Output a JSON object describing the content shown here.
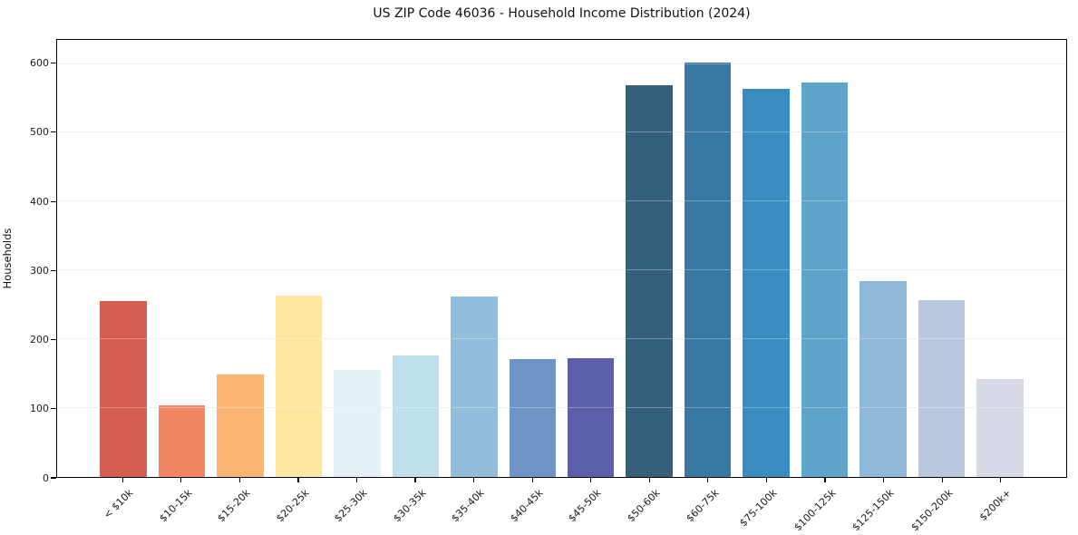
{
  "chart_data": {
    "type": "bar",
    "title": "US ZIP Code 46036 - Household Income Distribution (2024)",
    "xlabel": "",
    "ylabel": "Households",
    "categories": [
      "< $10k",
      "$10-15k",
      "$15-20k",
      "$20-25k",
      "$25-30k",
      "$30-35k",
      "$35-40k",
      "$40-45k",
      "$45-50k",
      "$50-60k",
      "$60-75k",
      "$75-100k",
      "$100-125k",
      "$125-150k",
      "$150-200k",
      "$200k+"
    ],
    "values": [
      256,
      104,
      149,
      264,
      156,
      176,
      262,
      171,
      172,
      569,
      602,
      564,
      573,
      285,
      257,
      142
    ],
    "bar_colors": [
      "#d65d52",
      "#f28766",
      "#f9b471",
      "#fde69e",
      "#e3f1f7",
      "#bde0ec",
      "#90bedb",
      "#6d94c5",
      "#5b5ea9",
      "#34607b",
      "#3878a3",
      "#398cbf",
      "#5ea4cb",
      "#90b8d8",
      "#b9c8de",
      "#d8d9e8"
    ],
    "y_ticks": [
      0,
      100,
      200,
      300,
      400,
      500,
      600
    ],
    "ylim": [
      0,
      635
    ],
    "grid": "horizontal",
    "gridline_color": "#e9e9e9",
    "spine_color": "#000000",
    "background_color": "#ffffff",
    "legend": "none",
    "x_tick_rotation_deg": 45
  }
}
